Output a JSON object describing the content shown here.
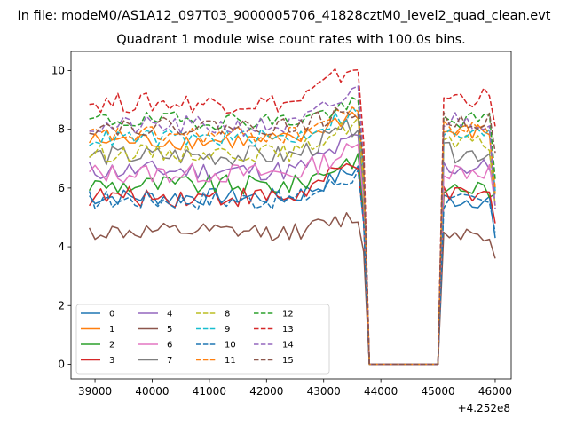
{
  "chart_data": {
    "type": "line",
    "suptitle": "In file: modeM0/AS1A12_097T03_9000005706_41828cztM0_level2_quad_clean.evt",
    "title": "Quadrant 1 module wise count rates with 100.0s bins.",
    "xlabel": "",
    "ylabel": "",
    "xlim": [
      38580,
      46280
    ],
    "ylim": [
      -0.5,
      10.65
    ],
    "x_offset_label": "+4.252e8",
    "x_ticks": [
      39000,
      40000,
      41000,
      42000,
      43000,
      44000,
      45000,
      46000
    ],
    "x_tick_labels": [
      "39000",
      "40000",
      "41000",
      "42000",
      "43000",
      "44000",
      "45000",
      "46000"
    ],
    "y_ticks": [
      0,
      2,
      4,
      6,
      8,
      10
    ],
    "y_tick_labels": [
      "0",
      "2",
      "4",
      "6",
      "8",
      "10"
    ],
    "legend": {
      "placement": "lower-left",
      "columns": 4
    },
    "x_start": 38900,
    "bin_size": 100,
    "gap": {
      "from": 43800,
      "to": 45000
    },
    "x_end": 46000,
    "series": [
      {
        "name": "0",
        "color": "#1f77b4",
        "linestyle": "solid",
        "mean": 5.7,
        "amp": 0.3,
        "peak": 6.6,
        "resume": 5.6,
        "end": 4.3
      },
      {
        "name": "1",
        "color": "#ff7f0e",
        "linestyle": "solid",
        "mean": 7.6,
        "amp": 0.3,
        "peak": 8.5,
        "resume": 7.9,
        "end": 5.8
      },
      {
        "name": "2",
        "color": "#2ca02c",
        "linestyle": "solid",
        "mean": 6.1,
        "amp": 0.35,
        "peak": 7.0,
        "resume": 6.0,
        "end": 5.8
      },
      {
        "name": "3",
        "color": "#d62728",
        "linestyle": "solid",
        "mean": 5.7,
        "amp": 0.35,
        "peak": 6.8,
        "resume": 5.7,
        "end": 4.8
      },
      {
        "name": "4",
        "color": "#9467bd",
        "linestyle": "solid",
        "mean": 6.6,
        "amp": 0.35,
        "peak": 7.6,
        "resume": 6.7,
        "end": 6.1
      },
      {
        "name": "5",
        "color": "#8c564b",
        "linestyle": "solid",
        "mean": 4.5,
        "amp": 0.3,
        "peak": 5.0,
        "resume": 4.5,
        "end": 3.6
      },
      {
        "name": "6",
        "color": "#e377c2",
        "linestyle": "solid",
        "mean": 6.5,
        "amp": 0.35,
        "peak": 7.3,
        "resume": 6.6,
        "end": 5.4
      },
      {
        "name": "7",
        "color": "#7f7f7f",
        "linestyle": "solid",
        "mean": 7.1,
        "amp": 0.35,
        "peak": 8.1,
        "resume": 7.2,
        "end": 6.0
      },
      {
        "name": "8",
        "color": "#bcbd22",
        "linestyle": "dashed",
        "mean": 7.2,
        "amp": 0.3,
        "peak": 8.2,
        "resume": 7.5,
        "end": 5.4
      },
      {
        "name": "9",
        "color": "#17becf",
        "linestyle": "dashed",
        "mean": 7.7,
        "amp": 0.3,
        "peak": 8.6,
        "resume": 7.8,
        "end": 5.9
      },
      {
        "name": "10",
        "color": "#1f77b4",
        "linestyle": "dashed",
        "mean": 5.6,
        "amp": 0.35,
        "peak": 6.4,
        "resume": 5.5,
        "end": 4.5
      },
      {
        "name": "11",
        "color": "#ff7f0e",
        "linestyle": "dashed",
        "mean": 7.8,
        "amp": 0.3,
        "peak": 8.7,
        "resume": 8.0,
        "end": 6.0
      },
      {
        "name": "12",
        "color": "#2ca02c",
        "linestyle": "dashed",
        "mean": 8.3,
        "amp": 0.3,
        "peak": 8.8,
        "resume": 8.3,
        "end": 6.3
      },
      {
        "name": "13",
        "color": "#d62728",
        "linestyle": "dashed",
        "mean": 8.9,
        "amp": 0.35,
        "peak": 10.1,
        "resume": 9.1,
        "end": 8.1
      },
      {
        "name": "14",
        "color": "#9467bd",
        "linestyle": "dashed",
        "mean": 8.1,
        "amp": 0.35,
        "peak": 9.2,
        "resume": 8.3,
        "end": 5.3
      },
      {
        "name": "15",
        "color": "#8c564b",
        "linestyle": "dashed",
        "mean": 8.1,
        "amp": 0.3,
        "peak": 8.6,
        "resume": 8.3,
        "end": 7.2
      }
    ]
  }
}
